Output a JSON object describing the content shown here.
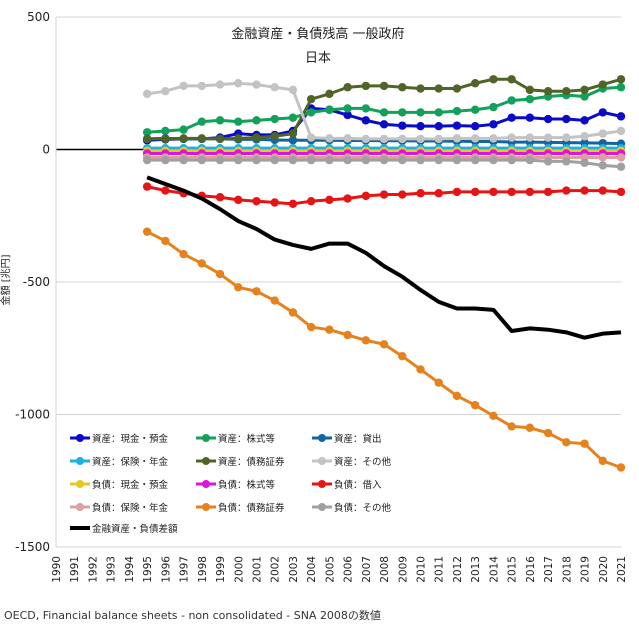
{
  "chart_data": {
    "type": "line",
    "title": "金融資産・負債残高 一般政府",
    "subtitle": "日本",
    "xlabel": "",
    "ylabel": "金額 [兆円]",
    "ylim": [
      -1500,
      500
    ],
    "yticks": [
      500,
      0,
      -500,
      -1000,
      -1500
    ],
    "categories": [
      "1990",
      "1991",
      "1992",
      "1993",
      "1994",
      "1995",
      "1996",
      "1997",
      "1998",
      "1999",
      "2000",
      "2001",
      "2002",
      "2003",
      "2004",
      "2005",
      "2006",
      "2007",
      "2008",
      "2009",
      "2010",
      "2011",
      "2012",
      "2013",
      "2014",
      "2015",
      "2016",
      "2017",
      "2018",
      "2019",
      "2020",
      "2021"
    ],
    "grid": "horizontal",
    "legend": "bottom-left",
    "source": "OECD, Financial balance sheets - non consolidated - SNA 2008の数値",
    "series": [
      {
        "name": "資産：現金・預金",
        "color": "#0a0ac8",
        "width": 3,
        "marker": true,
        "values": [
          null,
          null,
          null,
          null,
          null,
          35,
          38,
          40,
          40,
          45,
          60,
          55,
          55,
          70,
          155,
          150,
          130,
          110,
          95,
          90,
          88,
          88,
          90,
          88,
          95,
          120,
          120,
          115,
          115,
          110,
          140,
          125
        ]
      },
      {
        "name": "資産：株式等",
        "color": "#12a05a",
        "width": 3,
        "marker": true,
        "values": [
          null,
          null,
          null,
          null,
          null,
          65,
          70,
          75,
          105,
          110,
          105,
          110,
          115,
          120,
          140,
          150,
          155,
          155,
          140,
          140,
          140,
          140,
          145,
          150,
          160,
          185,
          190,
          200,
          205,
          200,
          230,
          235
        ]
      },
      {
        "name": "資産：貸出",
        "color": "#1464a0",
        "width": 3,
        "marker": true,
        "values": [
          null,
          null,
          null,
          null,
          null,
          40,
          42,
          40,
          40,
          40,
          38,
          38,
          36,
          35,
          35,
          35,
          34,
          34,
          33,
          33,
          32,
          32,
          31,
          30,
          30,
          28,
          28,
          27,
          26,
          25,
          24,
          22
        ]
      },
      {
        "name": "資産：保険・年金",
        "color": "#1ab0e6",
        "width": 3,
        "marker": true,
        "values": [
          null,
          null,
          null,
          null,
          null,
          5,
          5,
          5,
          5,
          5,
          5,
          5,
          5,
          5,
          5,
          5,
          5,
          5,
          5,
          5,
          5,
          5,
          5,
          5,
          5,
          5,
          5,
          5,
          5,
          5,
          5,
          5
        ]
      },
      {
        "name": "資産：債務証券",
        "color": "#506428",
        "width": 3,
        "marker": true,
        "values": [
          null,
          null,
          null,
          null,
          null,
          40,
          40,
          42,
          42,
          40,
          42,
          45,
          50,
          60,
          190,
          210,
          235,
          240,
          240,
          235,
          230,
          230,
          230,
          250,
          265,
          265,
          225,
          220,
          220,
          225,
          245,
          265
        ]
      },
      {
        "name": "資産：その他",
        "color": "#c3c3c3",
        "width": 3,
        "marker": true,
        "values": [
          null,
          null,
          null,
          null,
          null,
          210,
          220,
          240,
          240,
          245,
          250,
          245,
          235,
          225,
          45,
          42,
          42,
          40,
          40,
          40,
          40,
          40,
          42,
          42,
          42,
          45,
          45,
          45,
          45,
          50,
          60,
          70
        ]
      },
      {
        "name": "負債：現金・預金",
        "color": "#e6c81e",
        "width": 3,
        "marker": true,
        "values": [
          null,
          null,
          null,
          null,
          null,
          -5,
          -5,
          -5,
          -5,
          -5,
          -5,
          -5,
          -5,
          -5,
          -5,
          -5,
          -5,
          -5,
          -5,
          -5,
          -5,
          -5,
          -5,
          -5,
          -5,
          -5,
          -5,
          -5,
          -5,
          -5,
          -5,
          -5
        ]
      },
      {
        "name": "負債：株式等",
        "color": "#dc14dc",
        "width": 3,
        "marker": true,
        "values": [
          null,
          null,
          null,
          null,
          null,
          -15,
          -15,
          -15,
          -15,
          -15,
          -15,
          -15,
          -15,
          -15,
          -15,
          -15,
          -15,
          -15,
          -15,
          -15,
          -15,
          -15,
          -15,
          -15,
          -15,
          -15,
          -15,
          -15,
          -15,
          -15,
          -15,
          -15
        ]
      },
      {
        "name": "負債：借入",
        "color": "#e61414",
        "width": 3,
        "marker": true,
        "values": [
          null,
          null,
          null,
          null,
          null,
          -140,
          -155,
          -165,
          -175,
          -180,
          -190,
          -195,
          -200,
          -205,
          -195,
          -190,
          -185,
          -175,
          -170,
          -170,
          -165,
          -165,
          -160,
          -160,
          -160,
          -160,
          -160,
          -160,
          -155,
          -155,
          -155,
          -160
        ]
      },
      {
        "name": "負債：保険・年金",
        "color": "#dca0a0",
        "width": 3,
        "marker": true,
        "values": [
          null,
          null,
          null,
          null,
          null,
          -30,
          -30,
          -30,
          -30,
          -30,
          -30,
          -30,
          -30,
          -30,
          -30,
          -30,
          -30,
          -30,
          -30,
          -30,
          -30,
          -30,
          -30,
          -30,
          -30,
          -30,
          -30,
          -30,
          -30,
          -30,
          -30,
          -30
        ]
      },
      {
        "name": "負債：債務証券",
        "color": "#e6821e",
        "width": 3,
        "marker": true,
        "values": [
          null,
          null,
          null,
          null,
          null,
          -310,
          -345,
          -395,
          -430,
          -470,
          -520,
          -535,
          -570,
          -615,
          -670,
          -680,
          -700,
          -720,
          -735,
          -780,
          -830,
          -880,
          -930,
          -965,
          -1005,
          -1045,
          -1050,
          -1070,
          -1105,
          -1110,
          -1175,
          -1200
        ]
      },
      {
        "name": "負債：その他",
        "color": "#a0a0a0",
        "width": 3,
        "marker": true,
        "values": [
          null,
          null,
          null,
          null,
          null,
          -40,
          -40,
          -40,
          -40,
          -40,
          -40,
          -40,
          -40,
          -40,
          -40,
          -40,
          -40,
          -40,
          -40,
          -40,
          -40,
          -40,
          -40,
          -40,
          -40,
          -40,
          -40,
          -45,
          -45,
          -50,
          -60,
          -65
        ]
      },
      {
        "name": "金融資産・負債差額",
        "color": "#000000",
        "width": 4,
        "marker": false,
        "values": [
          null,
          null,
          null,
          null,
          null,
          -105,
          -130,
          -155,
          -185,
          -225,
          -270,
          -300,
          -340,
          -360,
          -375,
          -355,
          -355,
          -390,
          -440,
          -480,
          -530,
          -575,
          -600,
          -600,
          -605,
          -685,
          -675,
          -680,
          -690,
          -710,
          -695,
          -690
        ]
      }
    ]
  }
}
